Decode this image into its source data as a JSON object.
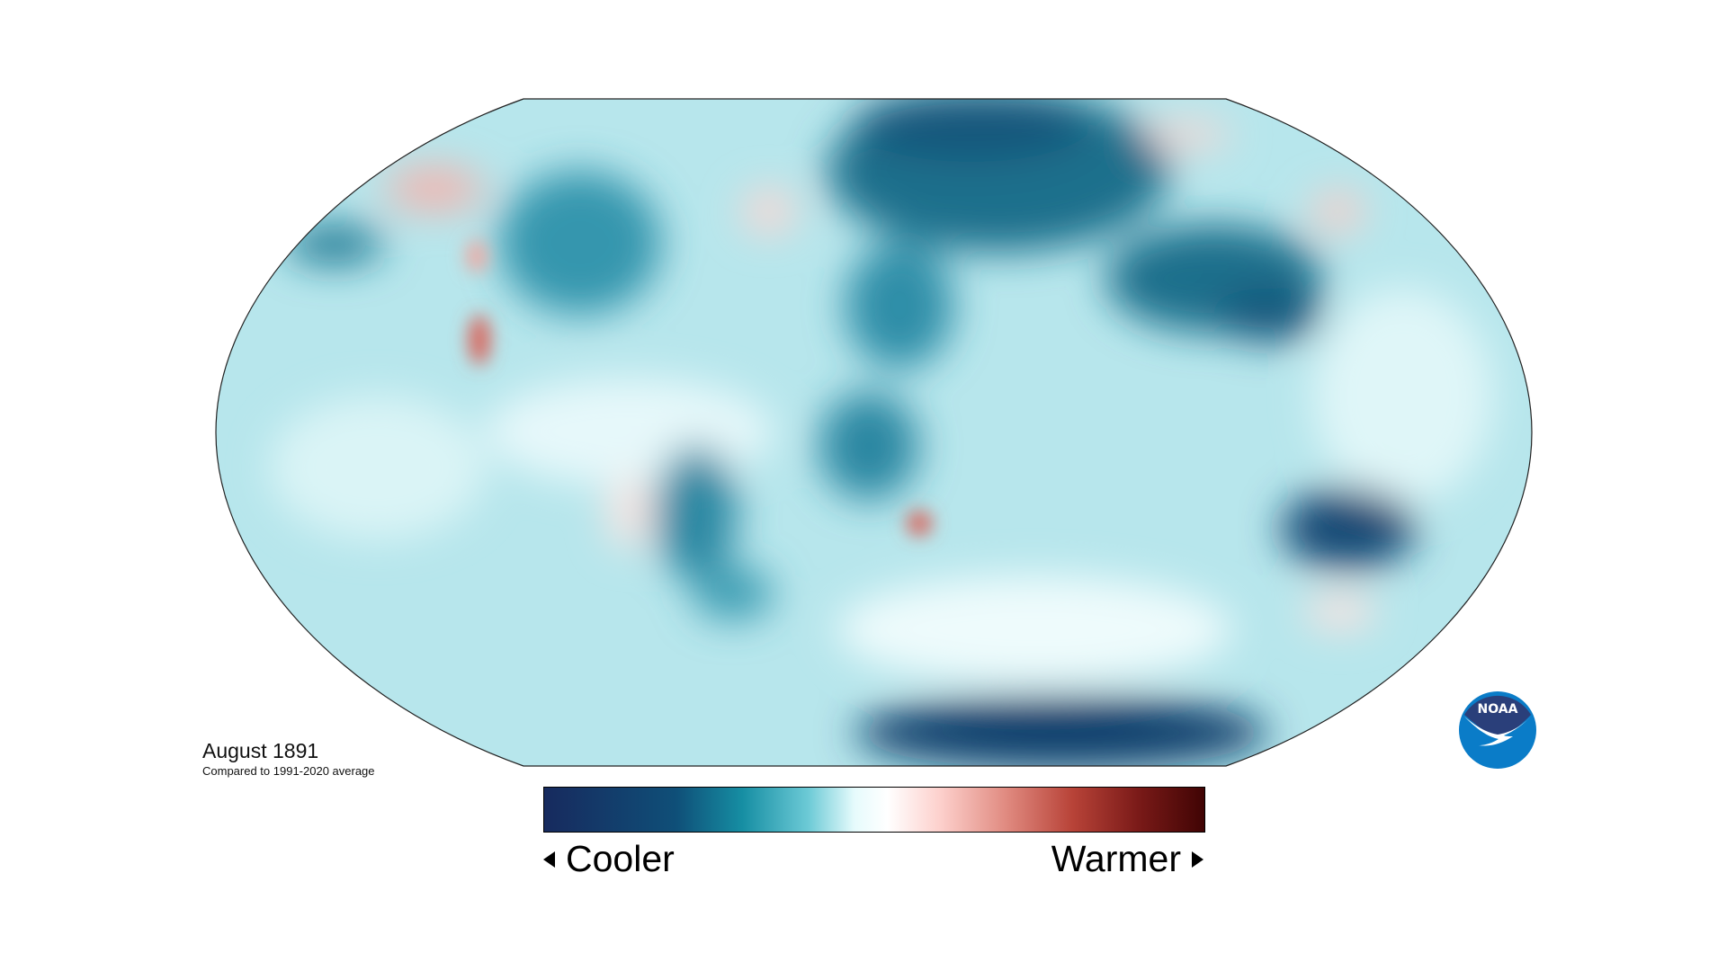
{
  "title": "August 1891",
  "subtitle": "Compared to 1991-2020 average",
  "legend": {
    "cooler_label": "Cooler",
    "warmer_label": "Warmer",
    "cooler_arrow_icon": "triangle-left-icon",
    "warmer_arrow_icon": "triangle-right-icon",
    "colors": [
      "#172a5e",
      "#0f4f78",
      "#168ea3",
      "#6ccad6",
      "#ffffff",
      "#fdd0cc",
      "#e08a80",
      "#b84338",
      "#7a1a18",
      "#400404"
    ]
  },
  "logo": {
    "text": "NOAA",
    "primary": "#2a3f7a",
    "secondary": "#0a7cc8"
  },
  "map": {
    "projection": "Robinson",
    "base_color": "#b7e6ec"
  }
}
